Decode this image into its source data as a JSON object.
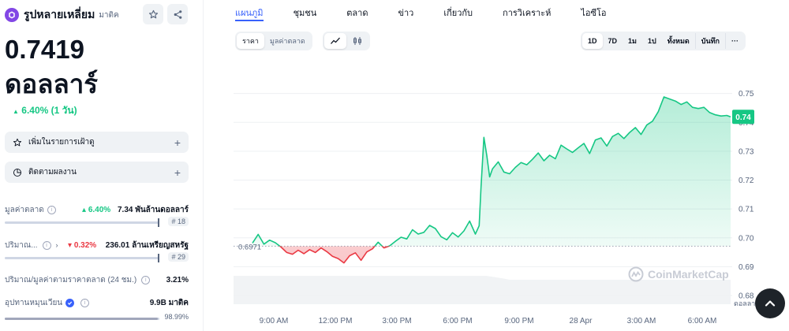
{
  "coin": {
    "name": "รูปหลายเหลี่ยม",
    "symbol": "มาติค",
    "price": "0.7419",
    "currency": "ดอลลาร์",
    "change": "6.40% (1 วัน)"
  },
  "actions": {
    "watchlist": "เพิ่มในรายการเฝ้าดู",
    "portfolio": "ติดตามผลงาน"
  },
  "stats": {
    "market_cap": {
      "label": "มูลค่าตลาด",
      "change": "6.40%",
      "value": "7.34 พันล้านดอลลาร์",
      "rank": "# 18"
    },
    "volume": {
      "label": "ปริมาณ...",
      "change": "0.32%",
      "value": "236.01 ล้านเหรียญสหรัฐ",
      "rank": "# 29"
    },
    "vol_mcap": {
      "label": "ปริมาณ/มูลค่าตามราคาตลาด (24 ชม.)",
      "value": "3.21%"
    },
    "supply": {
      "label": "อุปทานหมุนเวียน",
      "value": "9.9B มาติค",
      "pct": "98.99%",
      "fraction": 0.9899
    }
  },
  "tabs": [
    "แผนภูมิ",
    "ชุมชน",
    "ตลาด",
    "ข่าว",
    "เกี่ยวกับ",
    "การวิเคราะห์",
    "ไอซีโอ"
  ],
  "toolbar": {
    "type_options": [
      "ราคา",
      "มูลค่าตลาด"
    ],
    "ranges": [
      "1D",
      "7D",
      "1ม",
      "1ป",
      "ทั้งหมด"
    ],
    "log": "บันทึก",
    "more": "···"
  },
  "icons": {
    "logo": "polygon-logo-icon",
    "star": "star-icon",
    "share": "share-icon",
    "line": "line-chart-icon",
    "candle": "candlestick-icon",
    "pie": "pie-icon",
    "verified": "verified-badge-icon",
    "scroll": "chevron-up-icon"
  },
  "colors": {
    "accent": "#3861fb",
    "up": "#16c784",
    "down": "#ea3943",
    "polygon": "#8247e5"
  },
  "chart_data": {
    "type": "line",
    "ytick_labels": [
      "0.75",
      "0.74",
      "0.73",
      "0.72",
      "0.71",
      "0.70",
      "0.69",
      "0.68"
    ],
    "xtick_labels": [
      "9:00 AM",
      "12:00 PM",
      "3:00 PM",
      "6:00 PM",
      "9:00 PM",
      "28 Apr",
      "3:00 AM",
      "6:00 AM"
    ],
    "ylim": [
      0.677,
      0.757
    ],
    "baseline": 0.6971,
    "baseline_label": "0.6971",
    "current": 0.7419,
    "current_label": "0.74",
    "watermark": "CoinMarketCap",
    "unit_label": "ดอลลาร์",
    "x": [
      0,
      0.3,
      0.6,
      0.9,
      1.2,
      1.5,
      1.8,
      2.1,
      2.4,
      2.7,
      3.0,
      3.3,
      3.6,
      3.9,
      4.2,
      4.5,
      4.8,
      5.1,
      5.4,
      5.7,
      6.0,
      6.3,
      6.6,
      6.9,
      7.2,
      7.5,
      7.8,
      8.1,
      8.4,
      8.7,
      9.0,
      9.3,
      9.6,
      9.9,
      10.2,
      10.5,
      10.8,
      11.1,
      11.4,
      11.7,
      11.9,
      12.0,
      12.15,
      12.3,
      12.45,
      12.6,
      12.9,
      13.2,
      13.5,
      13.8,
      14.1,
      14.4,
      14.7,
      15.0,
      15.3,
      15.6,
      15.9,
      16.2,
      16.5,
      16.8,
      17.1,
      17.4,
      17.7,
      18.0,
      18.3,
      18.6,
      18.9,
      19.2,
      19.5,
      19.8,
      20.1,
      20.4,
      20.7,
      21.0,
      21.3,
      21.6,
      21.9,
      22.2,
      22.5,
      22.8,
      23.1,
      23.4,
      23.7,
      24.0,
      24.3,
      24.6,
      24.9,
      25.1
    ],
    "values": [
      0.6982,
      0.7012,
      0.6978,
      0.6992,
      0.6983,
      0.6968,
      0.6949,
      0.6943,
      0.6957,
      0.6945,
      0.6959,
      0.6949,
      0.6965,
      0.6952,
      0.6936,
      0.6928,
      0.6913,
      0.6938,
      0.6948,
      0.6922,
      0.6951,
      0.6962,
      0.6985,
      0.6965,
      0.6972,
      0.6988,
      0.7002,
      0.6996,
      0.7028,
      0.7013,
      0.7019,
      0.7043,
      0.7032,
      0.7004,
      0.6993,
      0.7018,
      0.7003,
      0.7024,
      0.7058,
      0.7013,
      0.7042,
      0.7178,
      0.7348,
      0.7285,
      0.7211,
      0.7239,
      0.7263,
      0.7228,
      0.7222,
      0.7244,
      0.7261,
      0.7253,
      0.7272,
      0.7294,
      0.7267,
      0.7286,
      0.7274,
      0.7321,
      0.7308,
      0.7296,
      0.7312,
      0.7327,
      0.7292,
      0.7339,
      0.7346,
      0.7318,
      0.7351,
      0.7362,
      0.7344,
      0.7365,
      0.7382,
      0.7358,
      0.7391,
      0.7404,
      0.7437,
      0.7488,
      0.7481,
      0.7474,
      0.7462,
      0.7471,
      0.7452,
      0.7448,
      0.7452,
      0.7434,
      0.7426,
      0.7422,
      0.7424,
      0.7419
    ]
  }
}
